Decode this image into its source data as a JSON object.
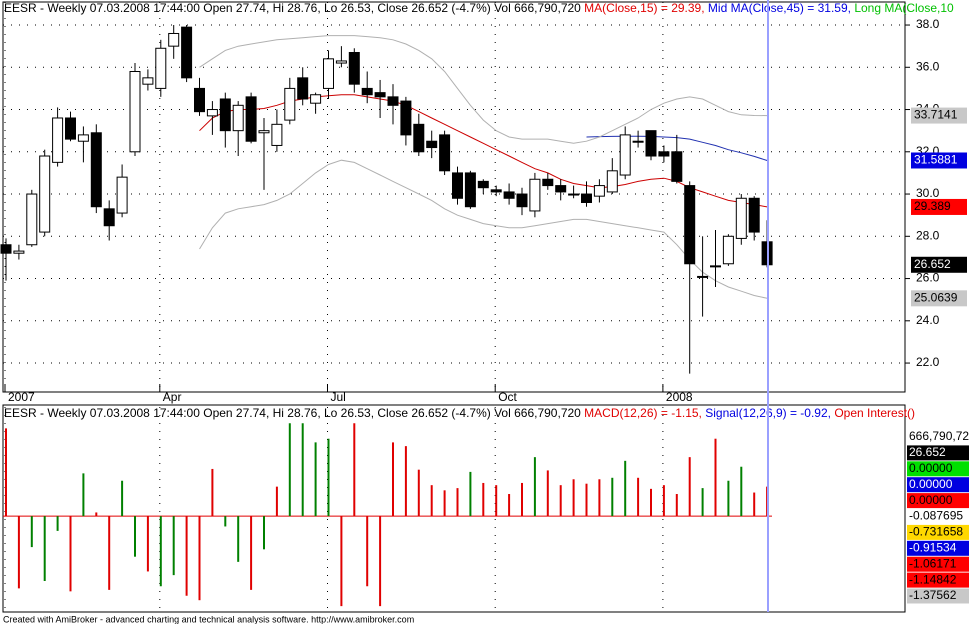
{
  "chart_data": [
    {
      "type": "candlestick",
      "header": [
        {
          "text": "EESR - Weekly 07.03.2008 17:44:00 Open 27.74, Hi 28.76, Lo 26.53, Close 26.652 (-4.7%) Vol 666,790,720 ",
          "color": "#000000"
        },
        {
          "text": "MA(Close,15) = 29.39, ",
          "color": "#e00000"
        },
        {
          "text": "Mid MA(Close,45) = 31.59, ",
          "color": "#0000e0"
        },
        {
          "text": "Long MA(Close,10",
          "color": "#00c000"
        }
      ],
      "categories": [
        "2007",
        null,
        null,
        null,
        null,
        null,
        null,
        null,
        null,
        null,
        null,
        null,
        "Apr",
        null,
        null,
        null,
        null,
        null,
        null,
        null,
        null,
        null,
        null,
        null,
        null,
        "Jul",
        null,
        null,
        null,
        null,
        null,
        null,
        null,
        null,
        null,
        null,
        null,
        null,
        "Oct",
        null,
        null,
        null,
        null,
        null,
        null,
        null,
        null,
        null,
        null,
        null,
        null,
        "2008",
        null,
        null,
        null,
        null,
        null,
        null,
        null,
        null
      ],
      "ohlc": [
        [
          27.6,
          27.9,
          25.9,
          27.2
        ],
        [
          27.2,
          27.6,
          26.9,
          27.3
        ],
        [
          27.6,
          30.2,
          27.5,
          30.0
        ],
        [
          28.2,
          32.1,
          28.0,
          31.8
        ],
        [
          31.5,
          34.1,
          31.3,
          33.6
        ],
        [
          33.6,
          33.9,
          32.5,
          32.6
        ],
        [
          32.5,
          33.2,
          31.5,
          32.8
        ],
        [
          32.9,
          33.3,
          29.1,
          29.4
        ],
        [
          29.3,
          29.7,
          27.8,
          28.5
        ],
        [
          29.1,
          31.4,
          28.9,
          30.8
        ],
        [
          32.0,
          36.2,
          31.8,
          35.8
        ],
        [
          35.2,
          35.9,
          34.9,
          35.5
        ],
        [
          35.0,
          37.3,
          34.6,
          36.9
        ],
        [
          37.0,
          38.0,
          36.4,
          37.6
        ],
        [
          37.9,
          38.0,
          35.3,
          35.5
        ],
        [
          35.0,
          35.5,
          33.7,
          33.9
        ],
        [
          33.7,
          34.4,
          32.8,
          34.0
        ],
        [
          34.5,
          34.8,
          32.2,
          33.0
        ],
        [
          33.0,
          34.4,
          31.8,
          34.2
        ],
        [
          34.6,
          34.8,
          32.4,
          32.5
        ],
        [
          32.9,
          33.6,
          30.2,
          33.0
        ],
        [
          32.3,
          34.0,
          32.0,
          33.3
        ],
        [
          33.5,
          35.5,
          33.3,
          35.0
        ],
        [
          35.5,
          36.0,
          34.2,
          34.5
        ],
        [
          34.3,
          34.8,
          33.8,
          34.7
        ],
        [
          35.0,
          36.8,
          34.5,
          36.4
        ],
        [
          36.2,
          37.0,
          36.0,
          36.3
        ],
        [
          36.7,
          36.9,
          34.8,
          35.2
        ],
        [
          35.0,
          35.8,
          34.3,
          34.7
        ],
        [
          34.8,
          35.4,
          33.6,
          34.6
        ],
        [
          34.6,
          35.2,
          33.3,
          34.2
        ],
        [
          34.4,
          34.6,
          32.3,
          32.8
        ],
        [
          33.3,
          33.8,
          31.8,
          32.0
        ],
        [
          32.5,
          33.0,
          31.7,
          32.2
        ],
        [
          32.8,
          33.0,
          30.9,
          31.1
        ],
        [
          31.0,
          31.3,
          29.5,
          29.8
        ],
        [
          31.0,
          31.1,
          29.3,
          29.4
        ],
        [
          30.6,
          30.7,
          30.0,
          30.3
        ],
        [
          30.2,
          30.4,
          29.9,
          30.1
        ],
        [
          30.1,
          30.5,
          29.5,
          29.8
        ],
        [
          30.0,
          30.3,
          29.0,
          29.4
        ],
        [
          29.2,
          31.0,
          28.9,
          30.7
        ],
        [
          30.7,
          31.0,
          30.2,
          30.4
        ],
        [
          30.4,
          30.7,
          29.7,
          30.1
        ],
        [
          30.0,
          30.4,
          29.8,
          30.0
        ],
        [
          30.0,
          30.6,
          29.4,
          29.6
        ],
        [
          29.9,
          30.7,
          29.6,
          30.4
        ],
        [
          30.1,
          31.7,
          30.0,
          31.1
        ],
        [
          30.9,
          33.2,
          30.7,
          32.8
        ],
        [
          32.5,
          33.0,
          32.2,
          32.5
        ],
        [
          33.0,
          33.0,
          31.6,
          31.8
        ],
        [
          32.0,
          32.3,
          31.5,
          31.8
        ],
        [
          32.0,
          32.8,
          30.5,
          30.6
        ],
        [
          30.4,
          30.6,
          21.5,
          26.7
        ],
        [
          26.1,
          28.0,
          24.2,
          26.1
        ],
        [
          26.6,
          28.3,
          25.6,
          26.6
        ],
        [
          26.7,
          28.1,
          26.6,
          28.0
        ],
        [
          27.9,
          30.0,
          27.6,
          29.8
        ],
        [
          29.8,
          29.9,
          27.8,
          28.2
        ],
        [
          27.74,
          28.76,
          26.53,
          26.652
        ]
      ],
      "up_color": "#ffffff",
      "down_color": "#000000",
      "series": [
        {
          "name": "MA(Close,15)",
          "color": "#cc0000",
          "values": [
            null,
            null,
            null,
            null,
            null,
            null,
            null,
            null,
            null,
            null,
            null,
            null,
            null,
            null,
            null,
            33.0,
            33.6,
            33.9,
            34.0,
            34.0,
            34.05,
            34.2,
            34.4,
            34.5,
            34.6,
            34.65,
            34.7,
            34.7,
            34.6,
            34.5,
            34.4,
            34.2,
            33.9,
            33.6,
            33.3,
            33.0,
            32.7,
            32.4,
            32.1,
            31.8,
            31.5,
            31.2,
            31.0,
            30.7,
            30.5,
            30.4,
            30.3,
            30.35,
            30.45,
            30.6,
            30.7,
            30.75,
            30.6,
            30.3,
            30.1,
            29.9,
            29.7,
            29.6,
            29.5,
            29.39
          ]
        },
        {
          "name": "Mid MA(Close,45)",
          "color": "#2030b0",
          "values": [
            null,
            null,
            null,
            null,
            null,
            null,
            null,
            null,
            null,
            null,
            null,
            null,
            null,
            null,
            null,
            null,
            null,
            null,
            null,
            null,
            null,
            null,
            null,
            null,
            null,
            null,
            null,
            null,
            null,
            null,
            null,
            null,
            null,
            null,
            null,
            null,
            null,
            null,
            null,
            null,
            null,
            null,
            null,
            null,
            null,
            32.7,
            32.72,
            32.73,
            32.74,
            32.74,
            32.73,
            32.7,
            32.67,
            32.6,
            32.45,
            32.3,
            32.1,
            31.95,
            31.78,
            31.59
          ]
        },
        {
          "name": "Upper band",
          "color": "#b0b0b0",
          "values": [
            null,
            null,
            null,
            null,
            null,
            null,
            null,
            null,
            null,
            null,
            null,
            null,
            null,
            null,
            null,
            36.0,
            36.4,
            36.8,
            37.0,
            37.1,
            37.2,
            37.3,
            37.35,
            37.4,
            37.45,
            37.5,
            37.5,
            37.5,
            37.45,
            37.4,
            37.3,
            37.1,
            36.8,
            36.4,
            35.8,
            35.0,
            34.2,
            33.5,
            33.0,
            32.7,
            32.6,
            32.6,
            32.6,
            32.5,
            32.4,
            32.5,
            32.7,
            33.0,
            33.3,
            33.6,
            34.0,
            34.3,
            34.5,
            34.6,
            34.5,
            34.2,
            33.9,
            33.75,
            33.72,
            33.7141
          ]
        },
        {
          "name": "Lower band",
          "color": "#b0b0b0",
          "values": [
            null,
            null,
            null,
            null,
            null,
            null,
            null,
            null,
            null,
            null,
            null,
            null,
            null,
            null,
            null,
            27.4,
            28.4,
            29.1,
            29.3,
            29.4,
            29.5,
            29.7,
            30.0,
            30.5,
            31.0,
            31.4,
            31.6,
            31.5,
            31.2,
            30.9,
            30.6,
            30.3,
            30.0,
            29.7,
            29.3,
            29.0,
            28.8,
            28.6,
            28.5,
            28.4,
            28.4,
            28.5,
            28.6,
            28.7,
            28.8,
            28.8,
            28.7,
            28.6,
            28.5,
            28.4,
            28.3,
            28.2,
            27.6,
            26.9,
            26.3,
            25.9,
            25.6,
            25.4,
            25.2,
            25.0639
          ]
        }
      ],
      "ylim": [
        20.63,
        39.09
      ],
      "yticks": [
        {
          "value": 22,
          "label": "22.0"
        },
        {
          "value": 24,
          "label": "24.0"
        },
        {
          "value": 26,
          "label": "26.0"
        },
        {
          "value": 28,
          "label": "28.0"
        },
        {
          "value": 30,
          "label": "30.0"
        },
        {
          "value": 32,
          "label": "32.0"
        },
        {
          "value": 34,
          "label": "34.0"
        },
        {
          "value": 36,
          "label": "36.0"
        },
        {
          "value": 38,
          "label": "38.0"
        }
      ],
      "grid": true,
      "price_tags": [
        {
          "value": 33.7141,
          "color": "#c8c8c8",
          "text_color": "#000000"
        },
        {
          "value": 31.5881,
          "color": "#0000e0",
          "text_color": "#ffffff"
        },
        {
          "value": 29.389,
          "color": "#ff0000",
          "text_color": "#000000"
        },
        {
          "value": 26.652,
          "color": "#000000",
          "text_color": "#ffffff"
        },
        {
          "value": 25.0639,
          "color": "#c8c8c8",
          "text_color": "#000000"
        }
      ]
    },
    {
      "type": "bar",
      "header": [
        {
          "text": "EESR - Weekly 07.03.2008 17:44:00 Open 27.74, Hi 28.76, Lo 26.53, Close 26.652 (-4.7%) Vol 666,790,720 ",
          "color": "#000000"
        },
        {
          "text": "MACD(12,26) = -1.15, ",
          "color": "#e00000"
        },
        {
          "text": "Signal(12,26,9) = -0.92, ",
          "color": "#0000e0"
        },
        {
          "text": "Open Interest()",
          "color": "#e00000"
        }
      ],
      "values": [
        1.19,
        -0.98,
        -0.42,
        -0.88,
        -0.2,
        -1.02,
        0.58,
        0.05,
        -1.0,
        0.48,
        -0.55,
        -0.75,
        -0.95,
        -0.8,
        -1.08,
        -1.14,
        0.64,
        -0.14,
        -0.62,
        -1.0,
        -0.45,
        0.4,
        1.26,
        1.26,
        1.0,
        1.05,
        -1.22,
        1.26,
        -0.95,
        -1.22,
        1.0,
        0.95,
        0.63,
        0.42,
        0.35,
        0.38,
        0.6,
        0.45,
        0.42,
        0.3,
        0.45,
        0.8,
        0.62,
        0.42,
        0.5,
        0.44,
        0.5,
        0.52,
        0.75,
        0.52,
        0.37,
        0.42,
        0.3,
        0.8,
        0.38,
        1.05,
        0.48,
        0.67,
        0.32,
        0.4
      ],
      "colors": [
        "#e00000",
        "#e00000",
        "#008000",
        "#008000",
        "#008000",
        "#e00000",
        "#008000",
        "#e00000",
        "#e00000",
        "#008000",
        "#008000",
        "#e00000",
        "#008000",
        "#008000",
        "#e00000",
        "#e00000",
        "#e00000",
        "#008000",
        "#008000",
        "#e00000",
        "#008000",
        "#e00000",
        "#008000",
        "#008000",
        "#008000",
        "#008000",
        "#e00000",
        "#e00000",
        "#e00000",
        "#e00000",
        "#e00000",
        "#e00000",
        "#e00000",
        "#e00000",
        "#e00000",
        "#e00000",
        "#008000",
        "#e00000",
        "#e00000",
        "#e00000",
        "#e00000",
        "#008000",
        "#e00000",
        "#e00000",
        "#e00000",
        "#e00000",
        "#e00000",
        "#008000",
        "#008000",
        "#e00000",
        "#e00000",
        "#e00000",
        "#e00000",
        "#e00000",
        "#008000",
        "#e00000",
        "#008000",
        "#008000",
        "#e00000",
        "#e00000"
      ],
      "ylim": [
        -1.3,
        1.48
      ],
      "value_tags": [
        {
          "label": "666,790,72",
          "color": "#ffffff",
          "text_color": "#000000"
        },
        {
          "label": "26.652",
          "color": "#000000",
          "text_color": "#ffffff"
        },
        {
          "label": "0.00000",
          "color": "#00e000",
          "text_color": "#000000"
        },
        {
          "label": "0.00000",
          "color": "#0000e0",
          "text_color": "#ffffff"
        },
        {
          "label": "0.00000",
          "color": "#ff0000",
          "text_color": "#000000"
        },
        {
          "label": "-0.087695",
          "color": "#ffffff",
          "text_color": "#000000"
        },
        {
          "label": "-0.731658",
          "color": "#ffd800",
          "text_color": "#000000"
        },
        {
          "label": "-0.91534",
          "color": "#0000e0",
          "text_color": "#ffffff"
        },
        {
          "label": "-1.06171",
          "color": "#ff0000",
          "text_color": "#000000"
        },
        {
          "label": "-1.14842",
          "color": "#ff0000",
          "text_color": "#000000"
        },
        {
          "label": "-1.37562",
          "color": "#c8c8c8",
          "text_color": "#000000"
        }
      ]
    }
  ],
  "footer": "Created with AmiBroker - advanced charting and technical analysis software. http://www.amibroker.com"
}
